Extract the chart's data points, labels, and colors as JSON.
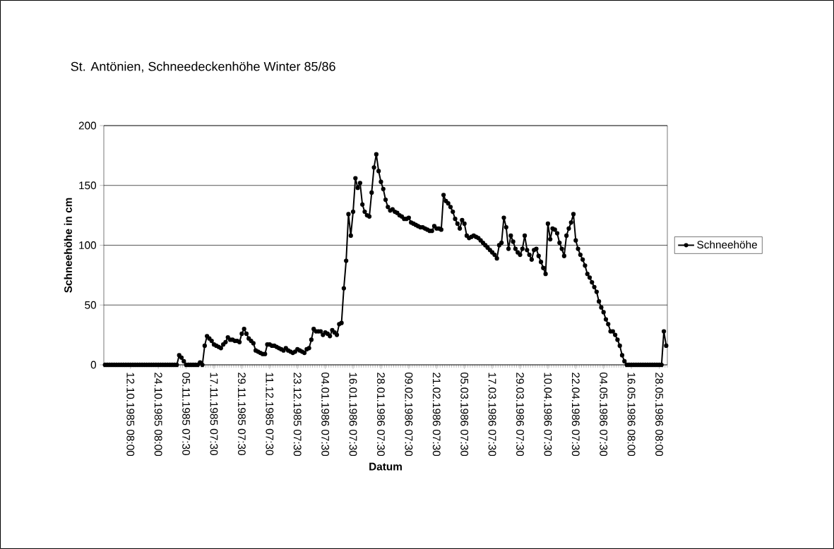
{
  "chart_data": {
    "type": "line",
    "title": "St. Antönien, Schneedeckenhöhe Winter 85/86",
    "xlabel": "Datum",
    "ylabel": "Schneehöhe in cm",
    "categories": [
      null,
      null,
      null,
      null,
      null,
      null,
      null,
      null,
      null,
      null,
      null,
      "12.10.1985 08:00",
      null,
      null,
      null,
      null,
      null,
      null,
      null,
      null,
      null,
      null,
      null,
      "24.10.1985 08:00",
      null,
      null,
      null,
      null,
      null,
      null,
      null,
      null,
      null,
      null,
      null,
      "05.11.1985 07:30",
      null,
      null,
      null,
      null,
      null,
      null,
      null,
      null,
      null,
      null,
      null,
      "17.11.1985 07:30",
      null,
      null,
      null,
      null,
      null,
      null,
      null,
      null,
      null,
      null,
      null,
      "29.11.1985 07:30",
      null,
      null,
      null,
      null,
      null,
      null,
      null,
      null,
      null,
      null,
      null,
      "11.12.1985 07:30",
      null,
      null,
      null,
      null,
      null,
      null,
      null,
      null,
      null,
      null,
      null,
      "23.12.1985 07:30",
      null,
      null,
      null,
      null,
      null,
      null,
      null,
      null,
      null,
      null,
      null,
      "04.01.1986 07:30",
      null,
      null,
      null,
      null,
      null,
      null,
      null,
      null,
      null,
      null,
      null,
      "16.01.1986 07:30",
      null,
      null,
      null,
      null,
      null,
      null,
      null,
      null,
      null,
      null,
      null,
      "28.01.1986 07:30",
      null,
      null,
      null,
      null,
      null,
      null,
      null,
      null,
      null,
      null,
      null,
      "09.02.1986 07:30",
      null,
      null,
      null,
      null,
      null,
      null,
      null,
      null,
      null,
      null,
      null,
      "21.02.1986 07:30",
      null,
      null,
      null,
      null,
      null,
      null,
      null,
      null,
      null,
      null,
      null,
      "05.03.1986 07:30",
      null,
      null,
      null,
      null,
      null,
      null,
      null,
      null,
      null,
      null,
      null,
      "17.03.1986 07:30",
      null,
      null,
      null,
      null,
      null,
      null,
      null,
      null,
      null,
      null,
      null,
      "29.03.1986 07:30",
      null,
      null,
      null,
      null,
      null,
      null,
      null,
      null,
      null,
      null,
      null,
      "10.04.1986 07:30",
      null,
      null,
      null,
      null,
      null,
      null,
      null,
      null,
      null,
      null,
      null,
      "22.04.1986 07:30",
      null,
      null,
      null,
      null,
      null,
      null,
      null,
      null,
      null,
      null,
      null,
      "04.05.1986 07:30",
      null,
      null,
      null,
      null,
      null,
      null,
      null,
      null,
      null,
      null,
      null,
      "16.05.1986 08:00",
      null,
      null,
      null,
      null,
      null,
      null,
      null,
      null,
      null,
      null,
      null,
      "28.05.1986 08:00",
      null,
      null,
      null
    ],
    "series": [
      {
        "name": "Schneehöhe",
        "color": "#000000",
        "values": [
          0,
          0,
          0,
          0,
          0,
          0,
          0,
          0,
          0,
          0,
          0,
          0,
          0,
          0,
          0,
          0,
          0,
          0,
          0,
          0,
          0,
          0,
          0,
          0,
          0,
          0,
          0,
          0,
          0,
          0,
          0,
          0,
          8,
          6,
          3,
          0,
          0,
          0,
          0,
          0,
          0,
          2,
          0,
          16,
          24,
          22,
          20,
          17,
          16,
          15,
          14,
          17,
          19,
          23,
          21,
          21,
          20,
          20,
          19,
          26,
          30,
          26,
          22,
          20,
          18,
          12,
          11,
          10,
          9,
          9,
          17,
          17,
          16,
          16,
          15,
          14,
          13,
          12,
          14,
          12,
          11,
          10,
          11,
          13,
          12,
          11,
          10,
          13,
          14,
          21,
          30,
          28,
          28,
          28,
          25,
          27,
          26,
          24,
          29,
          27,
          25,
          34,
          35,
          64,
          87,
          126,
          108,
          128,
          156,
          148,
          152,
          134,
          128,
          125,
          124,
          144,
          165,
          176,
          162,
          153,
          147,
          138,
          132,
          129,
          130,
          128,
          127,
          125,
          124,
          122,
          122,
          123,
          119,
          118,
          117,
          116,
          115,
          115,
          114,
          113,
          112,
          112,
          116,
          114,
          114,
          113,
          142,
          137,
          135,
          132,
          128,
          122,
          118,
          114,
          121,
          118,
          108,
          106,
          107,
          108,
          107,
          106,
          104,
          102,
          100,
          98,
          96,
          94,
          92,
          89,
          100,
          102,
          123,
          115,
          97,
          108,
          103,
          97,
          94,
          92,
          97,
          108,
          96,
          92,
          88,
          96,
          97,
          91,
          86,
          81,
          76,
          118,
          105,
          114,
          113,
          110,
          102,
          97,
          91,
          108,
          114,
          119,
          126,
          104,
          97,
          92,
          88,
          83,
          76,
          73,
          69,
          65,
          61,
          53,
          48,
          44,
          38,
          34,
          28,
          28,
          25,
          21,
          16,
          8,
          3,
          0,
          0,
          0,
          0,
          0,
          0,
          0,
          0,
          0,
          0,
          0,
          0,
          0,
          0,
          0,
          0,
          28,
          16
        ]
      }
    ],
    "ylim": [
      0,
      200
    ],
    "yticks": [
      0,
      50,
      100,
      150,
      200
    ],
    "grid": "y",
    "legend": "right",
    "marker": "circle",
    "line_style": "solid"
  }
}
